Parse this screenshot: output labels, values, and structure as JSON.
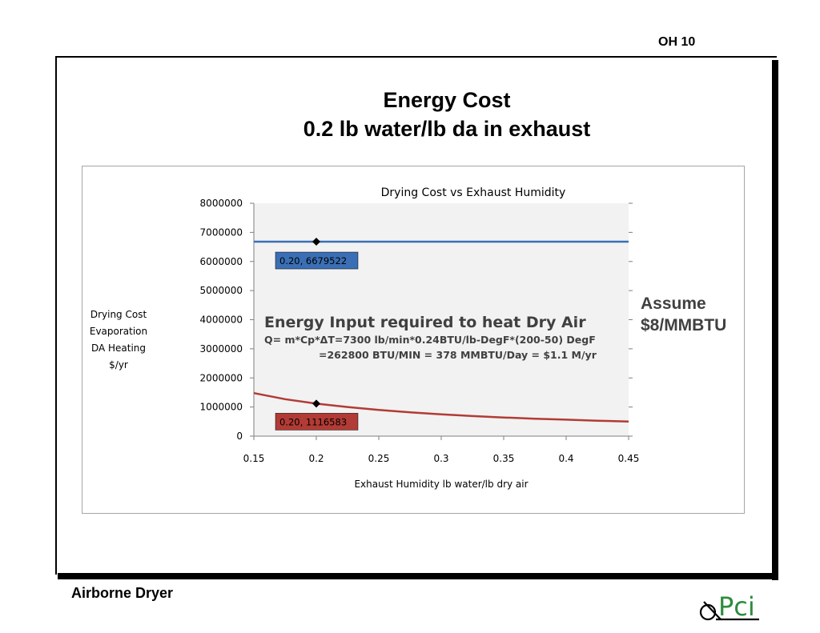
{
  "slide": {
    "number_label": "OH 10",
    "title_line1": "Energy Cost",
    "title_line2": "0.2 lb water/lb da in exhaust",
    "assume_line1": "Assume",
    "assume_line2": "$8/MMBTU",
    "footer": "Airborne Dryer",
    "logo_text": "Pci"
  },
  "colors": {
    "upper_series": "#3a6fb5",
    "lower_series": "#b23b35",
    "plot_bg": "#f2f2f2",
    "annotation_text": "#404040"
  },
  "chart_data": {
    "type": "line",
    "title": "Drying Cost vs Exhaust Humidity",
    "xlabel": "Exhaust Humidity lb water/lb dry air",
    "ylabel_lines": [
      "Drying Cost",
      "Evaporation",
      "DA Heating",
      "$/yr"
    ],
    "xlim": [
      0.15,
      0.45
    ],
    "ylim": [
      0,
      8000000
    ],
    "x_ticks": [
      "0.15",
      "0.2",
      "0.25",
      "0.3",
      "0.35",
      "0.4",
      "0.45"
    ],
    "y_ticks": [
      "0",
      "1000000",
      "2000000",
      "3000000",
      "4000000",
      "5000000",
      "6000000",
      "7000000",
      "8000000"
    ],
    "grid": false,
    "series": [
      {
        "x": [
          0.15,
          0.2,
          0.25,
          0.3,
          0.35,
          0.4,
          0.45
        ],
        "y": [
          6679522,
          6679522,
          6679522,
          6679522,
          6679522,
          6679522,
          6679522
        ],
        "marker_x": 0.2,
        "marker_y": 6679522,
        "data_label": "0.20, 6679522"
      },
      {
        "x": [
          0.15,
          0.175,
          0.2,
          0.225,
          0.25,
          0.275,
          0.3,
          0.325,
          0.35,
          0.375,
          0.4,
          0.425,
          0.45
        ],
        "y": [
          1480000,
          1270000,
          1116583,
          1000000,
          900000,
          820000,
          750000,
          690000,
          640000,
          600000,
          565000,
          530000,
          500000
        ],
        "marker_x": 0.2,
        "marker_y": 1116583,
        "data_label": "0.20, 1116583"
      }
    ],
    "annotation": {
      "heading": "Energy Input required to heat Dry Air",
      "line1": "Q= m*Cp*ΔT=7300 lb/min*0.24BTU/lb-DegF*(200-50) DegF",
      "line2": "=262800 BTU/MIN = 378 MMBTU/Day = $1.1 M/yr"
    }
  }
}
